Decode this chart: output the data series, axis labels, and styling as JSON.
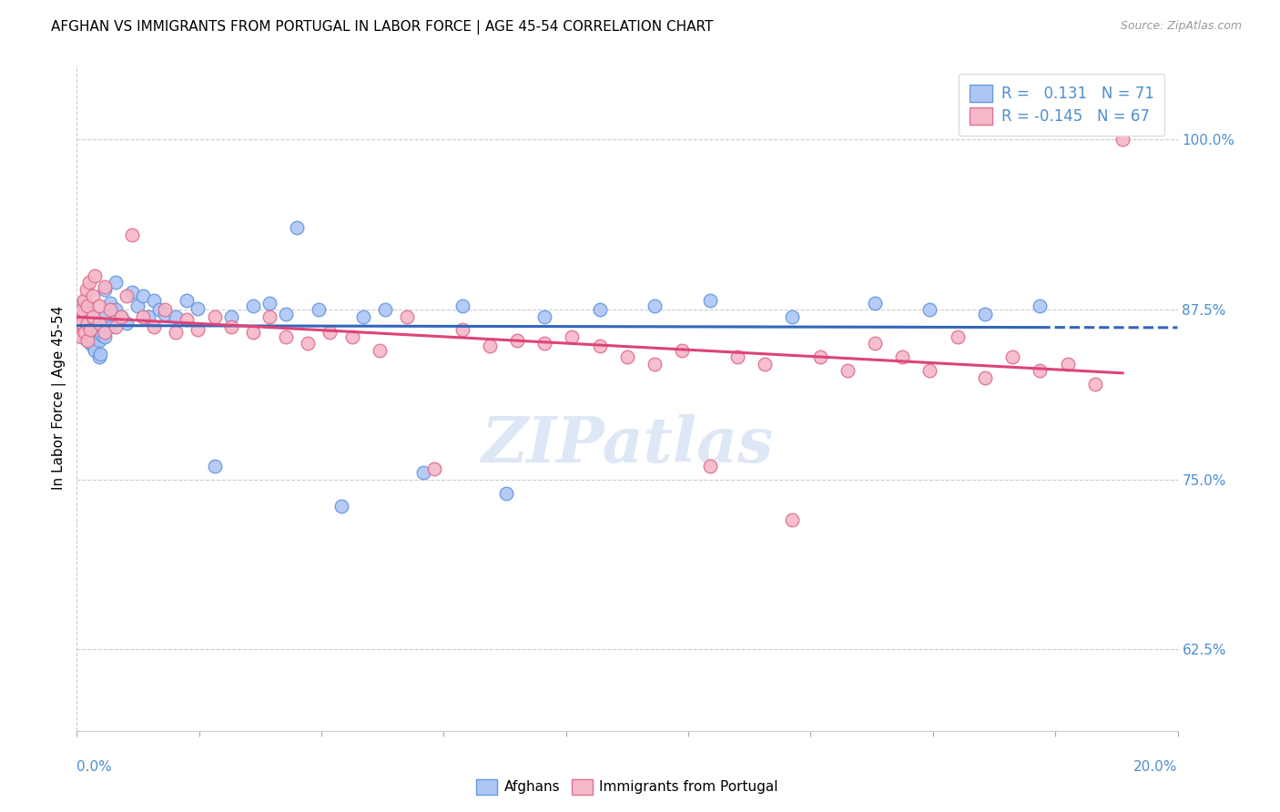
{
  "title": "AFGHAN VS IMMIGRANTS FROM PORTUGAL IN LABOR FORCE | AGE 45-54 CORRELATION CHART",
  "source": "Source: ZipAtlas.com",
  "ylabel": "In Labor Force | Age 45-54",
  "yticks": [
    0.625,
    0.75,
    0.875,
    1.0
  ],
  "ytick_labels": [
    "62.5%",
    "75.0%",
    "87.5%",
    "100.0%"
  ],
  "xlim": [
    0.0,
    0.2
  ],
  "ylim": [
    0.565,
    1.055
  ],
  "legend_R_af": "R =   0.131",
  "legend_N_af": "N = 71",
  "legend_R_pt": "R = -0.145",
  "legend_N_pt": "N = 67",
  "title_fontsize": 11,
  "source_fontsize": 9,
  "axis_color": "#4d8fd1",
  "background_color": "#ffffff",
  "scatter_af_face": "#aec6f5",
  "scatter_af_edge": "#6699dd",
  "scatter_pt_face": "#f5b8c8",
  "scatter_pt_edge": "#e07090",
  "line_af_color": "#3366bb",
  "line_pt_color": "#dd4477",
  "watermark_color": "#c8d8ef",
  "grid_color": "#cccccc",
  "afghans_x": [
    0.0005,
    0.0007,
    0.0008,
    0.001,
    0.001,
    0.001,
    0.0012,
    0.0013,
    0.0015,
    0.0015,
    0.0017,
    0.0018,
    0.002,
    0.002,
    0.002,
    0.002,
    0.0022,
    0.0023,
    0.0025,
    0.0025,
    0.003,
    0.003,
    0.003,
    0.0033,
    0.0035,
    0.004,
    0.004,
    0.004,
    0.0042,
    0.0045,
    0.005,
    0.005,
    0.005,
    0.006,
    0.006,
    0.007,
    0.007,
    0.008,
    0.009,
    0.01,
    0.011,
    0.012,
    0.013,
    0.014,
    0.015,
    0.016,
    0.018,
    0.02,
    0.022,
    0.025,
    0.028,
    0.032,
    0.035,
    0.038,
    0.04,
    0.044,
    0.048,
    0.052,
    0.056,
    0.063,
    0.07,
    0.078,
    0.085,
    0.095,
    0.105,
    0.115,
    0.13,
    0.145,
    0.155,
    0.165,
    0.175
  ],
  "afghans_y": [
    0.868,
    0.862,
    0.875,
    0.86,
    0.87,
    0.88,
    0.855,
    0.865,
    0.875,
    0.882,
    0.858,
    0.87,
    0.852,
    0.86,
    0.868,
    0.876,
    0.855,
    0.865,
    0.85,
    0.872,
    0.848,
    0.855,
    0.862,
    0.845,
    0.858,
    0.84,
    0.852,
    0.86,
    0.842,
    0.856,
    0.87,
    0.89,
    0.855,
    0.88,
    0.862,
    0.875,
    0.895,
    0.87,
    0.865,
    0.888,
    0.878,
    0.885,
    0.87,
    0.882,
    0.875,
    0.872,
    0.87,
    0.882,
    0.876,
    0.76,
    0.87,
    0.878,
    0.88,
    0.872,
    0.935,
    0.875,
    0.73,
    0.87,
    0.875,
    0.755,
    0.878,
    0.74,
    0.87,
    0.875,
    0.878,
    0.882,
    0.87,
    0.88,
    0.875,
    0.872,
    0.878
  ],
  "portugal_x": [
    0.0005,
    0.0007,
    0.0008,
    0.001,
    0.001,
    0.0012,
    0.0015,
    0.0017,
    0.002,
    0.002,
    0.002,
    0.0022,
    0.0025,
    0.003,
    0.003,
    0.0033,
    0.004,
    0.004,
    0.005,
    0.005,
    0.006,
    0.007,
    0.008,
    0.009,
    0.01,
    0.012,
    0.014,
    0.016,
    0.018,
    0.02,
    0.022,
    0.025,
    0.028,
    0.032,
    0.035,
    0.038,
    0.042,
    0.046,
    0.05,
    0.055,
    0.06,
    0.065,
    0.07,
    0.075,
    0.08,
    0.085,
    0.09,
    0.095,
    0.1,
    0.105,
    0.11,
    0.115,
    0.12,
    0.125,
    0.13,
    0.135,
    0.14,
    0.145,
    0.15,
    0.155,
    0.16,
    0.165,
    0.17,
    0.175,
    0.18,
    0.185,
    0.19
  ],
  "portugal_y": [
    0.865,
    0.855,
    0.87,
    0.875,
    0.865,
    0.882,
    0.858,
    0.89,
    0.878,
    0.865,
    0.852,
    0.895,
    0.86,
    0.885,
    0.87,
    0.9,
    0.865,
    0.878,
    0.858,
    0.892,
    0.875,
    0.862,
    0.87,
    0.885,
    0.93,
    0.87,
    0.862,
    0.875,
    0.858,
    0.868,
    0.86,
    0.87,
    0.862,
    0.858,
    0.87,
    0.855,
    0.85,
    0.858,
    0.855,
    0.845,
    0.87,
    0.758,
    0.86,
    0.848,
    0.852,
    0.85,
    0.855,
    0.848,
    0.84,
    0.835,
    0.845,
    0.76,
    0.84,
    0.835,
    0.72,
    0.84,
    0.83,
    0.85,
    0.84,
    0.83,
    0.855,
    0.825,
    0.84,
    0.83,
    0.835,
    0.82,
    1.0
  ]
}
